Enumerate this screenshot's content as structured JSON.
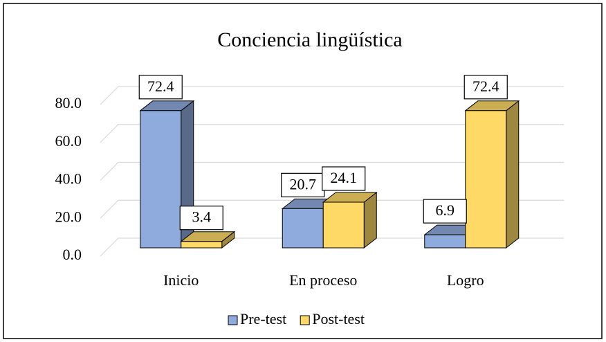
{
  "chart_data": {
    "type": "bar3d",
    "title": "Conciencia lingüística",
    "categories": [
      "Inicio",
      "En proceso",
      "Logro"
    ],
    "series": [
      {
        "name": "Pre-test",
        "color": "#8faadc",
        "values": [
          72.4,
          20.7,
          6.9
        ]
      },
      {
        "name": "Post-test",
        "color": "#ffd966",
        "values": [
          3.4,
          24.1,
          72.4
        ]
      }
    ],
    "ylim": [
      0,
      80
    ],
    "yticks": [
      {
        "value": 0,
        "label": "0.0"
      },
      {
        "value": 20,
        "label": "20.0"
      },
      {
        "value": 40,
        "label": "40.0"
      },
      {
        "value": 60,
        "label": "60.0"
      },
      {
        "value": 80,
        "label": "80.0"
      }
    ],
    "grid": true,
    "legend": "bottom"
  }
}
